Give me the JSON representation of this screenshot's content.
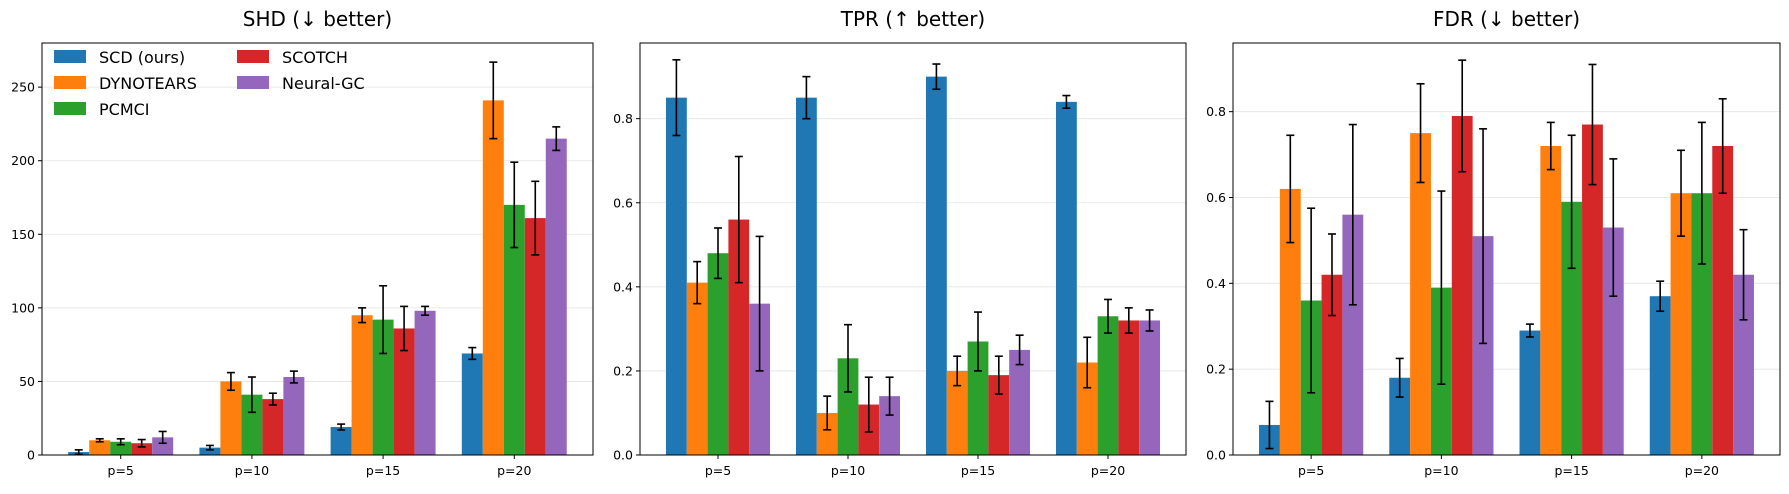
{
  "colors": {
    "SCD (ours)": "#1f77b4",
    "DYNOTEARS": "#ff7f0e",
    "PCMCI": "#2ca02c",
    "SCOTCH": "#d62728",
    "Neural-GC": "#9467bd"
  },
  "legend": {
    "position": "upper-left",
    "columns": 2,
    "entries": [
      "SCD (ours)",
      "DYNOTEARS",
      "PCMCI",
      "SCOTCH",
      "Neural-GC"
    ]
  },
  "chart_data": [
    {
      "type": "bar",
      "title": "SHD (↓ better)",
      "categories": [
        "p=5",
        "p=10",
        "p=15",
        "p=20"
      ],
      "ylim": [
        0,
        280
      ],
      "yticks": [
        0,
        50,
        100,
        150,
        200,
        250
      ],
      "yticklabels": [
        "0",
        "50",
        "100",
        "150",
        "200",
        "250"
      ],
      "grid": "y",
      "series": [
        {
          "name": "SCD (ours)",
          "values": [
            2,
            5,
            19,
            69
          ],
          "errors": [
            1.5,
            1.5,
            2,
            4
          ]
        },
        {
          "name": "DYNOTEARS",
          "values": [
            10,
            50,
            95,
            241
          ],
          "errors": [
            1,
            6,
            5,
            26
          ]
        },
        {
          "name": "PCMCI",
          "values": [
            9,
            41,
            92,
            170
          ],
          "errors": [
            2,
            12,
            23,
            29
          ]
        },
        {
          "name": "SCOTCH",
          "values": [
            8,
            38,
            86,
            161
          ],
          "errors": [
            2.5,
            4,
            15,
            25
          ]
        },
        {
          "name": "Neural-GC",
          "values": [
            12,
            53,
            98,
            215
          ],
          "errors": [
            4,
            4,
            3,
            8
          ]
        }
      ]
    },
    {
      "type": "bar",
      "title": "TPR (↑ better)",
      "categories": [
        "p=5",
        "p=10",
        "p=15",
        "p=20"
      ],
      "ylim": [
        0,
        0.98
      ],
      "yticks": [
        0,
        0.2,
        0.4,
        0.6,
        0.8
      ],
      "yticklabels": [
        "0.0",
        "0.2",
        "0.4",
        "0.6",
        "0.8"
      ],
      "grid": "y",
      "series": [
        {
          "name": "SCD (ours)",
          "values": [
            0.85,
            0.85,
            0.9,
            0.84
          ],
          "errors": [
            0.09,
            0.05,
            0.03,
            0.015
          ]
        },
        {
          "name": "DYNOTEARS",
          "values": [
            0.41,
            0.1,
            0.2,
            0.22
          ],
          "errors": [
            0.05,
            0.04,
            0.035,
            0.06
          ]
        },
        {
          "name": "PCMCI",
          "values": [
            0.48,
            0.23,
            0.27,
            0.33
          ],
          "errors": [
            0.06,
            0.08,
            0.07,
            0.04
          ]
        },
        {
          "name": "SCOTCH",
          "values": [
            0.56,
            0.12,
            0.19,
            0.32
          ],
          "errors": [
            0.15,
            0.065,
            0.045,
            0.03
          ]
        },
        {
          "name": "Neural-GC",
          "values": [
            0.36,
            0.14,
            0.25,
            0.32
          ],
          "errors": [
            0.16,
            0.045,
            0.035,
            0.025
          ]
        }
      ]
    },
    {
      "type": "bar",
      "title": "FDR (↓ better)",
      "categories": [
        "p=5",
        "p=10",
        "p=15",
        "p=20"
      ],
      "ylim": [
        0,
        0.96
      ],
      "yticks": [
        0,
        0.2,
        0.4,
        0.6,
        0.8
      ],
      "yticklabels": [
        "0.0",
        "0.2",
        "0.4",
        "0.6",
        "0.8"
      ],
      "grid": "y",
      "series": [
        {
          "name": "SCD (ours)",
          "values": [
            0.07,
            0.18,
            0.29,
            0.37
          ],
          "errors": [
            0.055,
            0.045,
            0.015,
            0.035
          ]
        },
        {
          "name": "DYNOTEARS",
          "values": [
            0.62,
            0.75,
            0.72,
            0.61
          ],
          "errors": [
            0.125,
            0.115,
            0.055,
            0.1
          ]
        },
        {
          "name": "PCMCI",
          "values": [
            0.36,
            0.39,
            0.59,
            0.61
          ],
          "errors": [
            0.215,
            0.225,
            0.155,
            0.165
          ]
        },
        {
          "name": "SCOTCH",
          "values": [
            0.42,
            0.79,
            0.77,
            0.72
          ],
          "errors": [
            0.095,
            0.13,
            0.14,
            0.11
          ]
        },
        {
          "name": "Neural-GC",
          "values": [
            0.56,
            0.51,
            0.53,
            0.42
          ],
          "errors": [
            0.21,
            0.25,
            0.16,
            0.105
          ]
        }
      ]
    }
  ]
}
